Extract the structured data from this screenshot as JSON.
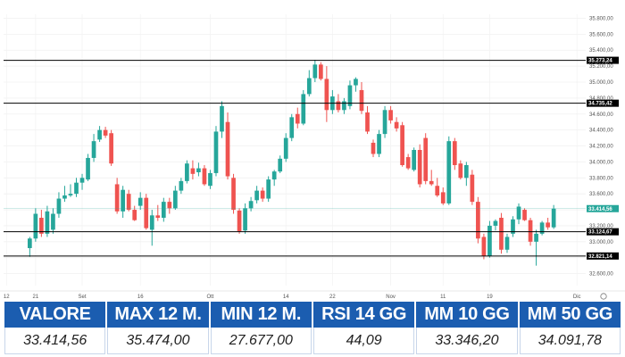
{
  "chart_data": {
    "type": "candlestick",
    "x_ticks": [
      {
        "label": "12",
        "i": 0
      },
      {
        "label": "21",
        "i": 5
      },
      {
        "label": "Set",
        "i": 13
      },
      {
        "label": "16",
        "i": 23
      },
      {
        "label": "Ott",
        "i": 35
      },
      {
        "label": "14",
        "i": 48
      },
      {
        "label": "22",
        "i": 56
      },
      {
        "label": "Nov",
        "i": 66
      },
      {
        "label": "11",
        "i": 75
      },
      {
        "label": "19",
        "i": 83
      },
      {
        "label": "Dic",
        "i": 98
      }
    ],
    "y_ticks": [
      "32.600,00",
      "32.800,00",
      "33.000,00",
      "33.200,00",
      "33.400,00",
      "33.600,00",
      "33.800,00",
      "34.000,00",
      "34.200,00",
      "34.400,00",
      "34.600,00",
      "34.800,00",
      "35.000,00",
      "35.200,00",
      "35.400,00",
      "35.600,00",
      "35.800,00"
    ],
    "y_tick_values": [
      32600,
      32800,
      33000,
      33200,
      33400,
      33600,
      33800,
      34000,
      34200,
      34400,
      34600,
      34800,
      35000,
      35200,
      35400,
      35600,
      35800
    ],
    "ylim": [
      32450,
      35850
    ],
    "n_slots": 100,
    "reference_lines": [
      {
        "value": 35273.24,
        "label": "35.273,24"
      },
      {
        "value": 34735.42,
        "label": "34.735,42"
      },
      {
        "value": 33124.67,
        "label": "33.124,67"
      },
      {
        "value": 32821.14,
        "label": "32.821,14"
      }
    ],
    "last_price": {
      "value": 33414.56,
      "label": "33.414,56"
    },
    "candles": [
      {
        "i": 4,
        "o": 32920,
        "h": 33060,
        "l": 32810,
        "c": 33040
      },
      {
        "i": 5,
        "o": 33040,
        "h": 33420,
        "l": 33000,
        "c": 33350
      },
      {
        "i": 6,
        "o": 33300,
        "h": 33400,
        "l": 33060,
        "c": 33100
      },
      {
        "i": 7,
        "o": 33100,
        "h": 33450,
        "l": 33060,
        "c": 33380
      },
      {
        "i": 8,
        "o": 33150,
        "h": 33420,
        "l": 33100,
        "c": 33350
      },
      {
        "i": 9,
        "o": 33350,
        "h": 33620,
        "l": 33300,
        "c": 33540
      },
      {
        "i": 10,
        "o": 33540,
        "h": 33700,
        "l": 33500,
        "c": 33580
      },
      {
        "i": 11,
        "o": 33580,
        "h": 33720,
        "l": 33560,
        "c": 33600
      },
      {
        "i": 12,
        "o": 33600,
        "h": 33800,
        "l": 33560,
        "c": 33740
      },
      {
        "i": 13,
        "o": 33740,
        "h": 33850,
        "l": 33650,
        "c": 33800
      },
      {
        "i": 14,
        "o": 33780,
        "h": 34100,
        "l": 33760,
        "c": 34050
      },
      {
        "i": 15,
        "o": 34050,
        "h": 34350,
        "l": 34000,
        "c": 34260
      },
      {
        "i": 16,
        "o": 34280,
        "h": 34450,
        "l": 34250,
        "c": 34400
      },
      {
        "i": 17,
        "o": 34400,
        "h": 34440,
        "l": 34300,
        "c": 34330
      },
      {
        "i": 18,
        "o": 34360,
        "h": 34400,
        "l": 33950,
        "c": 33980
      },
      {
        "i": 19,
        "o": 33720,
        "h": 33800,
        "l": 33350,
        "c": 33380
      },
      {
        "i": 20,
        "o": 33380,
        "h": 33700,
        "l": 33300,
        "c": 33650
      },
      {
        "i": 21,
        "o": 33600,
        "h": 33650,
        "l": 33380,
        "c": 33400
      },
      {
        "i": 22,
        "o": 33400,
        "h": 33450,
        "l": 33260,
        "c": 33270
      },
      {
        "i": 23,
        "o": 33450,
        "h": 33620,
        "l": 33400,
        "c": 33550
      },
      {
        "i": 24,
        "o": 33550,
        "h": 33600,
        "l": 33150,
        "c": 33170
      },
      {
        "i": 25,
        "o": 33150,
        "h": 33400,
        "l": 32950,
        "c": 33330
      },
      {
        "i": 26,
        "o": 33330,
        "h": 33460,
        "l": 33260,
        "c": 33300
      },
      {
        "i": 27,
        "o": 33300,
        "h": 33550,
        "l": 33250,
        "c": 33500
      },
      {
        "i": 28,
        "o": 33500,
        "h": 33550,
        "l": 33350,
        "c": 33420
      },
      {
        "i": 29,
        "o": 33420,
        "h": 33700,
        "l": 33400,
        "c": 33640
      },
      {
        "i": 30,
        "o": 33640,
        "h": 33800,
        "l": 33600,
        "c": 33760
      },
      {
        "i": 31,
        "o": 33760,
        "h": 34020,
        "l": 33730,
        "c": 33980
      },
      {
        "i": 32,
        "o": 33920,
        "h": 34020,
        "l": 33780,
        "c": 33850
      },
      {
        "i": 33,
        "o": 33870,
        "h": 33990,
        "l": 33820,
        "c": 33920
      },
      {
        "i": 34,
        "o": 33920,
        "h": 33960,
        "l": 33700,
        "c": 33720
      },
      {
        "i": 35,
        "o": 33700,
        "h": 33900,
        "l": 33660,
        "c": 33860
      },
      {
        "i": 36,
        "o": 33860,
        "h": 34450,
        "l": 33820,
        "c": 34380
      },
      {
        "i": 37,
        "o": 34380,
        "h": 34760,
        "l": 34300,
        "c": 34700
      },
      {
        "i": 38,
        "o": 34500,
        "h": 34620,
        "l": 33780,
        "c": 33820
      },
      {
        "i": 39,
        "o": 33800,
        "h": 33850,
        "l": 33350,
        "c": 33400
      },
      {
        "i": 40,
        "o": 33390,
        "h": 33420,
        "l": 33100,
        "c": 33130
      },
      {
        "i": 41,
        "o": 33140,
        "h": 33480,
        "l": 33100,
        "c": 33420
      },
      {
        "i": 42,
        "o": 33420,
        "h": 33560,
        "l": 33380,
        "c": 33510
      },
      {
        "i": 43,
        "o": 33520,
        "h": 33700,
        "l": 33480,
        "c": 33640
      },
      {
        "i": 44,
        "o": 33640,
        "h": 33680,
        "l": 33500,
        "c": 33540
      },
      {
        "i": 45,
        "o": 33540,
        "h": 33820,
        "l": 33500,
        "c": 33780
      },
      {
        "i": 46,
        "o": 33780,
        "h": 33900,
        "l": 33700,
        "c": 33880
      },
      {
        "i": 47,
        "o": 33880,
        "h": 34080,
        "l": 33860,
        "c": 34040
      },
      {
        "i": 48,
        "o": 34040,
        "h": 34360,
        "l": 34000,
        "c": 34300
      },
      {
        "i": 49,
        "o": 34300,
        "h": 34600,
        "l": 34260,
        "c": 34560
      },
      {
        "i": 50,
        "o": 34600,
        "h": 34680,
        "l": 34420,
        "c": 34480
      },
      {
        "i": 51,
        "o": 34480,
        "h": 34900,
        "l": 34460,
        "c": 34850
      },
      {
        "i": 52,
        "o": 34850,
        "h": 35150,
        "l": 34820,
        "c": 35050
      },
      {
        "i": 53,
        "o": 35050,
        "h": 35280,
        "l": 35000,
        "c": 35220
      },
      {
        "i": 54,
        "o": 35220,
        "h": 35250,
        "l": 35020,
        "c": 35040
      },
      {
        "i": 55,
        "o": 35040,
        "h": 35200,
        "l": 34500,
        "c": 34650
      },
      {
        "i": 56,
        "o": 34650,
        "h": 34900,
        "l": 34600,
        "c": 34820
      },
      {
        "i": 57,
        "o": 34760,
        "h": 34850,
        "l": 34620,
        "c": 34650
      },
      {
        "i": 58,
        "o": 34650,
        "h": 34800,
        "l": 34600,
        "c": 34760
      },
      {
        "i": 59,
        "o": 34700,
        "h": 35020,
        "l": 34660,
        "c": 34960
      },
      {
        "i": 60,
        "o": 34960,
        "h": 35060,
        "l": 34880,
        "c": 35040
      },
      {
        "i": 61,
        "o": 34900,
        "h": 35000,
        "l": 34600,
        "c": 34640
      },
      {
        "i": 62,
        "o": 34620,
        "h": 34700,
        "l": 34350,
        "c": 34380
      },
      {
        "i": 63,
        "o": 34240,
        "h": 34280,
        "l": 34060,
        "c": 34100
      },
      {
        "i": 64,
        "o": 34100,
        "h": 34400,
        "l": 34060,
        "c": 34350
      },
      {
        "i": 65,
        "o": 34350,
        "h": 34700,
        "l": 34300,
        "c": 34650
      },
      {
        "i": 66,
        "o": 34650,
        "h": 34700,
        "l": 34480,
        "c": 34520
      },
      {
        "i": 67,
        "o": 34500,
        "h": 34560,
        "l": 34380,
        "c": 34420
      },
      {
        "i": 68,
        "o": 34460,
        "h": 34500,
        "l": 33940,
        "c": 33960
      },
      {
        "i": 69,
        "o": 34060,
        "h": 34100,
        "l": 33900,
        "c": 33920
      },
      {
        "i": 70,
        "o": 33900,
        "h": 34180,
        "l": 33880,
        "c": 34150
      },
      {
        "i": 71,
        "o": 34150,
        "h": 34220,
        "l": 33680,
        "c": 33720
      },
      {
        "i": 72,
        "o": 34300,
        "h": 34360,
        "l": 33720,
        "c": 33760
      },
      {
        "i": 73,
        "o": 33760,
        "h": 33900,
        "l": 33700,
        "c": 33720
      },
      {
        "i": 74,
        "o": 33700,
        "h": 33800,
        "l": 33560,
        "c": 33580
      },
      {
        "i": 75,
        "o": 33620,
        "h": 33680,
        "l": 33460,
        "c": 33480
      },
      {
        "i": 76,
        "o": 33480,
        "h": 34320,
        "l": 33460,
        "c": 34260
      },
      {
        "i": 77,
        "o": 34260,
        "h": 34300,
        "l": 33900,
        "c": 33960
      },
      {
        "i": 78,
        "o": 33980,
        "h": 34020,
        "l": 33780,
        "c": 33800
      },
      {
        "i": 79,
        "o": 33800,
        "h": 34000,
        "l": 33700,
        "c": 33960
      },
      {
        "i": 80,
        "o": 33840,
        "h": 33900,
        "l": 33460,
        "c": 33500
      },
      {
        "i": 81,
        "o": 33500,
        "h": 33560,
        "l": 32980,
        "c": 33040
      },
      {
        "i": 82,
        "o": 33060,
        "h": 33100,
        "l": 32780,
        "c": 32820
      },
      {
        "i": 83,
        "o": 32820,
        "h": 33260,
        "l": 32800,
        "c": 33200
      },
      {
        "i": 84,
        "o": 33200,
        "h": 33280,
        "l": 33140,
        "c": 33260
      },
      {
        "i": 85,
        "o": 33300,
        "h": 33360,
        "l": 32850,
        "c": 32900
      },
      {
        "i": 86,
        "o": 32900,
        "h": 33100,
        "l": 32860,
        "c": 33060
      },
      {
        "i": 87,
        "o": 33100,
        "h": 33320,
        "l": 33060,
        "c": 33280
      },
      {
        "i": 88,
        "o": 33280,
        "h": 33480,
        "l": 33220,
        "c": 33440
      },
      {
        "i": 89,
        "o": 33400,
        "h": 33420,
        "l": 33260,
        "c": 33270
      },
      {
        "i": 90,
        "o": 33270,
        "h": 33300,
        "l": 32950,
        "c": 33000
      },
      {
        "i": 91,
        "o": 33000,
        "h": 33150,
        "l": 32700,
        "c": 33100
      },
      {
        "i": 92,
        "o": 33100,
        "h": 33260,
        "l": 33080,
        "c": 33240
      },
      {
        "i": 93,
        "o": 33240,
        "h": 33300,
        "l": 33150,
        "c": 33180
      },
      {
        "i": 94,
        "o": 33180,
        "h": 33460,
        "l": 33160,
        "c": 33415
      }
    ]
  },
  "colors": {
    "up": "#26a69a",
    "down": "#ef5350",
    "reference_line": "#000000",
    "last_price": "#26a69a",
    "header_bg": "#1b5db0"
  },
  "stats": [
    {
      "label": "VALORE",
      "value": "33.414,56"
    },
    {
      "label": "MAX 12 M.",
      "value": "35.474,00"
    },
    {
      "label": "MIN 12 M.",
      "value": "27.677,00"
    },
    {
      "label": "RSI 14 GG",
      "value": "44,09"
    },
    {
      "label": "MM 10 GG",
      "value": "33.346,20"
    },
    {
      "label": "MM 50 GG",
      "value": "34.091,78"
    }
  ]
}
